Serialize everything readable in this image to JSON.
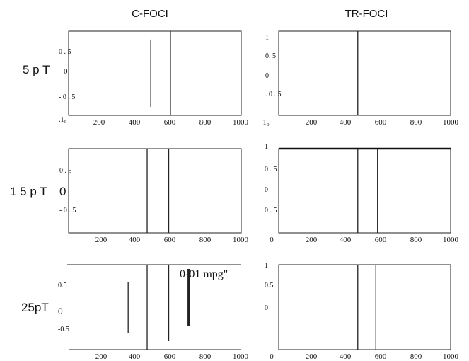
{
  "figure": {
    "column_titles": [
      "C-FOCI",
      "TR-FOCI"
    ],
    "row_labels": [
      {
        "parts": [
          "5 p T",
          "0"
        ]
      },
      {
        "parts": [
          "1 5 p T",
          "0"
        ]
      },
      {
        "parts": [
          "25pT",
          "0"
        ]
      }
    ],
    "annotation": "0-01 mpg\""
  },
  "chart_data": [
    {
      "id": "c-foci-5pT",
      "type": "line",
      "column": "C-FOCI",
      "row": "5pT",
      "xlim": [
        0,
        1000
      ],
      "ylim": [
        -1,
        1
      ],
      "x_ticks": [
        "200",
        "400",
        "600",
        "800",
        "1000"
      ],
      "y_ticks": [
        ".1₀",
        "- 0 . 5",
        "0 . 5"
      ],
      "frame": "box",
      "lines": [
        {
          "x": 475,
          "y_from": -0.8,
          "y_to": 0.8,
          "weight": "thin"
        },
        {
          "x": 590,
          "y_from": -1,
          "y_to": 1,
          "weight": "regular"
        }
      ]
    },
    {
      "id": "tr-foci-5pT",
      "type": "line",
      "column": "TR-FOCI",
      "row": "5pT",
      "xlim": [
        0,
        1000
      ],
      "ylim": [
        -1,
        1
      ],
      "x_ticks": [
        "1₀",
        "200",
        "400",
        "600",
        "800",
        "1000"
      ],
      "y_ticks": [
        "1",
        "0. 5",
        "0",
        ". 0 . 5"
      ],
      "frame": "box",
      "lines": [
        {
          "x": 460,
          "y_from": -1,
          "y_to": 1,
          "weight": "regular"
        }
      ]
    },
    {
      "id": "c-foci-15pT",
      "type": "line",
      "column": "C-FOCI",
      "row": "15pT",
      "xlim": [
        0,
        1000
      ],
      "ylim": [
        -1,
        1
      ],
      "x_ticks": [
        "200",
        "400",
        "600",
        "800",
        "1000"
      ],
      "y_ticks": [
        "0 . 5",
        "- 0 . 5"
      ],
      "frame": "box",
      "lines": [
        {
          "x": 455,
          "y_from": -1,
          "y_to": 1,
          "weight": "regular"
        },
        {
          "x": 580,
          "y_from": -1,
          "y_to": 1,
          "weight": "regular"
        }
      ]
    },
    {
      "id": "tr-foci-15pT",
      "type": "line",
      "column": "TR-FOCI",
      "row": "15pT",
      "xlim": [
        0,
        1000
      ],
      "ylim": [
        -1,
        1
      ],
      "x_ticks": [
        "0",
        "200",
        "400",
        "600",
        "800",
        "1000"
      ],
      "y_ticks": [
        "1",
        "0 . 5",
        "0",
        "0 . 5"
      ],
      "frame": "box-heavy-top",
      "lines": [
        {
          "x": 460,
          "y_from": -1,
          "y_to": 1,
          "weight": "regular"
        },
        {
          "x": 575,
          "y_from": -1,
          "y_to": 1,
          "weight": "regular"
        }
      ]
    },
    {
      "id": "c-foci-25pT",
      "type": "line",
      "column": "C-FOCI",
      "row": "25pT",
      "xlim": [
        0,
        1000
      ],
      "ylim": [
        -1,
        1
      ],
      "x_ticks": [
        "200",
        "400",
        "600",
        "800",
        "1000"
      ],
      "y_ticks": [
        "0.5",
        "-0.5"
      ],
      "frame": "open",
      "lines": [
        {
          "x": 345,
          "y_from": -0.6,
          "y_to": 0.6,
          "weight": "regular"
        },
        {
          "x": 455,
          "y_from": -1,
          "y_to": 1,
          "weight": "regular"
        },
        {
          "x": 580,
          "y_from": -0.8,
          "y_to": 1,
          "weight": "regular"
        },
        {
          "x": 695,
          "y_from": -0.45,
          "y_to": 0.9,
          "weight": "heavy"
        }
      ]
    },
    {
      "id": "tr-foci-25pT",
      "type": "line",
      "column": "TR-FOCI",
      "row": "25pT",
      "xlim": [
        0,
        1000
      ],
      "ylim": [
        -1,
        1
      ],
      "x_ticks": [
        "0",
        "200",
        "400",
        "600",
        "800",
        "1000"
      ],
      "y_ticks": [
        "1",
        "0.5",
        "0"
      ],
      "frame": "box",
      "lines": [
        {
          "x": 460,
          "y_from": -1,
          "y_to": 1,
          "weight": "regular"
        },
        {
          "x": 565,
          "y_from": -1,
          "y_to": 1,
          "weight": "regular"
        }
      ]
    }
  ]
}
